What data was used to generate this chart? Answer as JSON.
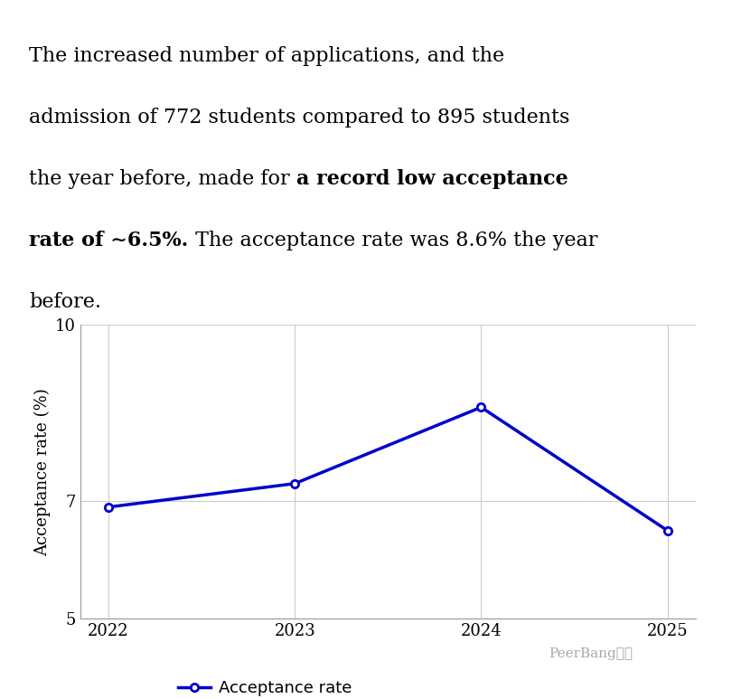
{
  "years": [
    2022,
    2023,
    2024,
    2025
  ],
  "acceptance_rates": [
    6.9,
    7.3,
    8.6,
    6.5
  ],
  "line_color": "#0000CC",
  "marker_style": "o",
  "marker_size": 6,
  "line_width": 2.5,
  "ylim": [
    5,
    10
  ],
  "yticks": [
    5,
    7,
    10
  ],
  "xticks": [
    2022,
    2023,
    2024,
    2025
  ],
  "ylabel": "Acceptance rate (%)",
  "grid_color": "#cccccc",
  "background_color": "#ffffff",
  "legend_label": "Acceptance rate",
  "font_size": 16,
  "font_family": "DejaVu Serif",
  "watermark": "PeerBang留学",
  "text_seg": [
    {
      "text": "The increased number of applications, and the\nadmission of 772 students compared to 895 students\nthe year before, made for ",
      "bold": false
    },
    {
      "text": "a record low acceptance\nrate of ~6.5%.",
      "bold": true
    },
    {
      "text": " The acceptance rate was 8.6% the year\nbefore.",
      "bold": false
    }
  ]
}
